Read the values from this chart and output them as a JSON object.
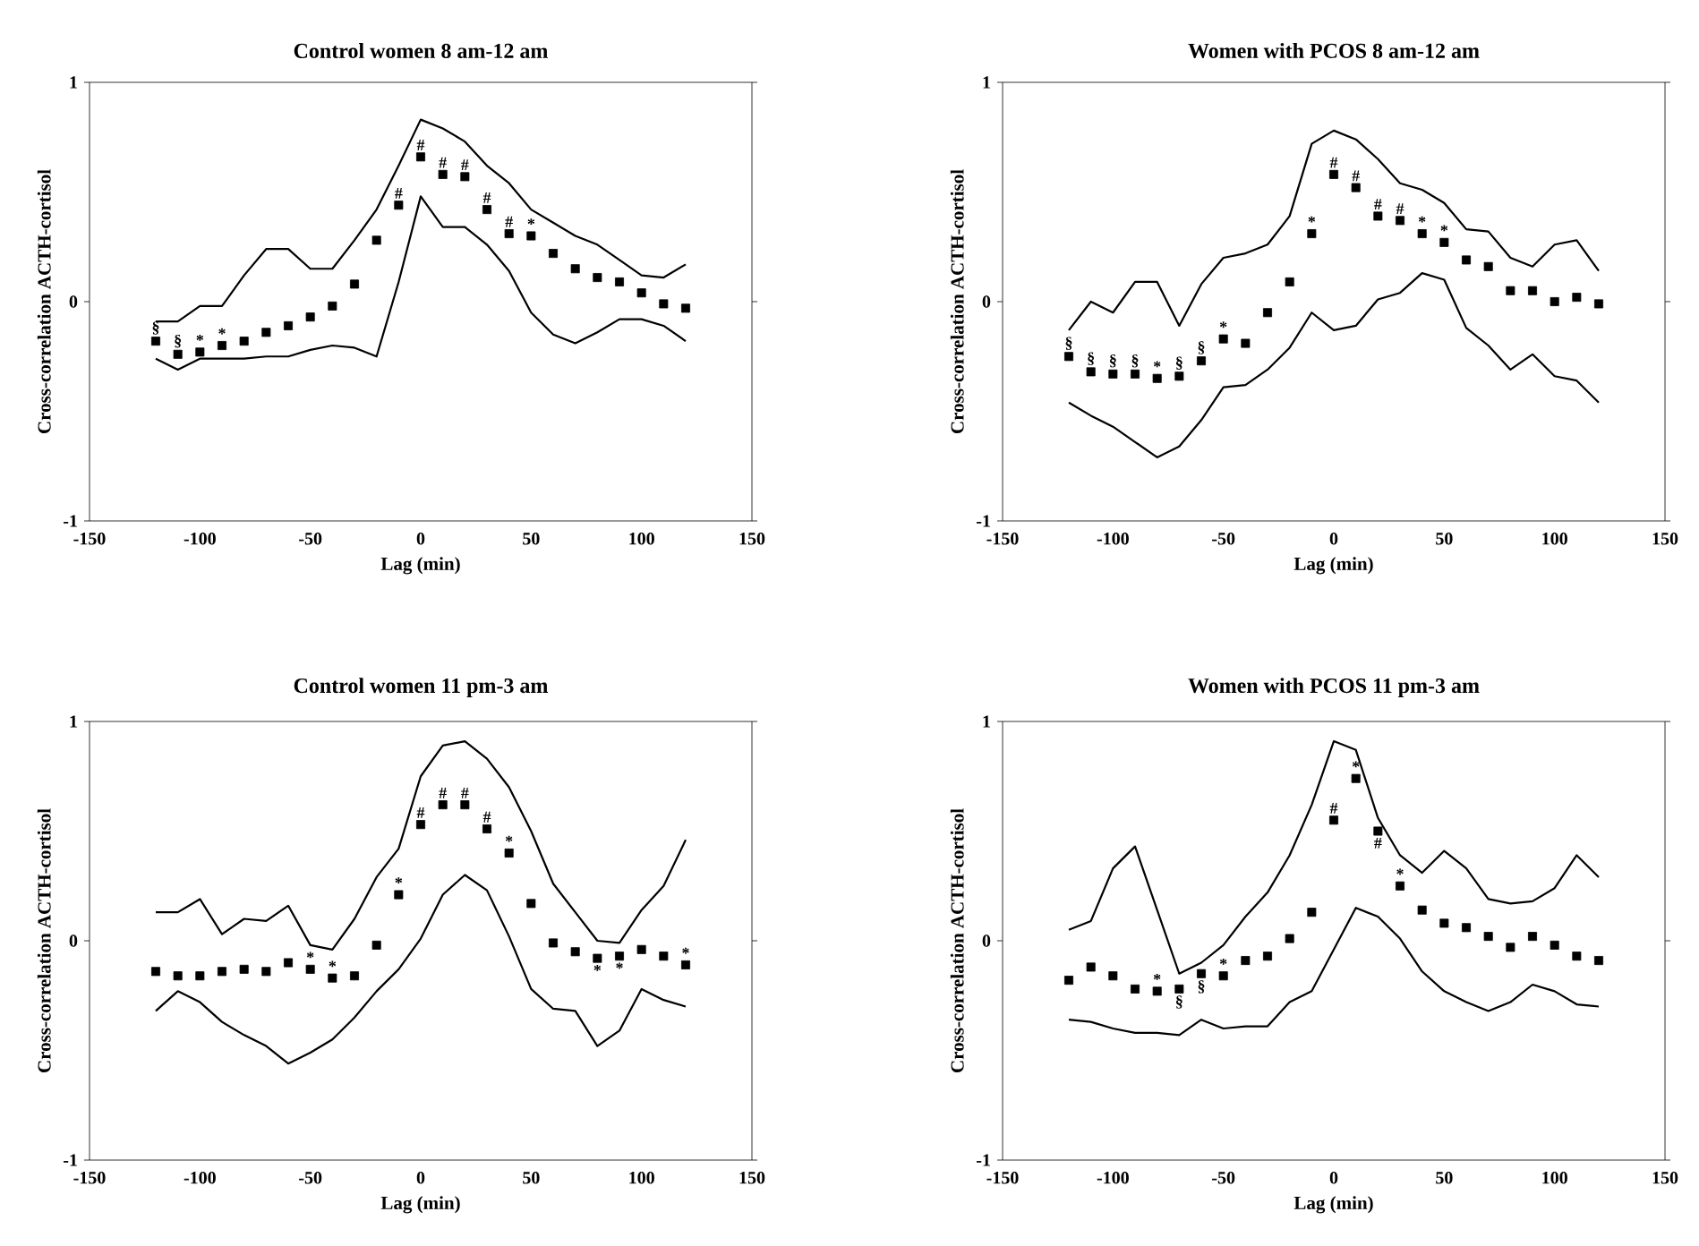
{
  "chart_data": [
    {
      "type": "scatter",
      "title": "Control women 8 am-12 am",
      "xlabel": "Lag (min)",
      "ylabel": "Cross-correlation ACTH-cortisol",
      "xlim": [
        -150,
        150
      ],
      "xticks": [
        -150,
        -100,
        -50,
        0,
        50,
        100,
        150
      ],
      "ylim": [
        -1,
        1
      ],
      "yticks": [
        -1,
        0,
        1
      ],
      "marker": "square",
      "x": [
        -120,
        -110,
        -100,
        -90,
        -80,
        -70,
        -60,
        -50,
        -40,
        -30,
        -20,
        -10,
        0,
        10,
        20,
        30,
        40,
        50,
        60,
        70,
        80,
        90,
        100,
        110,
        120
      ],
      "series": [
        {
          "color": "#000000",
          "values": [
            -0.18,
            -0.24,
            -0.23,
            -0.2,
            -0.18,
            -0.14,
            -0.11,
            -0.07,
            -0.02,
            0.08,
            0.28,
            0.44,
            0.66,
            0.58,
            0.57,
            0.42,
            0.31,
            0.3,
            0.22,
            0.15,
            0.11,
            0.09,
            0.04,
            -0.01,
            -0.03
          ]
        },
        {
          "type": "line",
          "marker": "none",
          "line_style": "solid",
          "color": "#000000",
          "values": [
            -0.09,
            -0.09,
            -0.02,
            -0.02,
            0.12,
            0.24,
            0.24,
            0.15,
            0.15,
            0.28,
            0.42,
            0.62,
            0.83,
            0.79,
            0.73,
            0.62,
            0.54,
            0.42,
            0.36,
            0.3,
            0.26,
            0.19,
            0.12,
            0.11,
            0.17
          ]
        },
        {
          "type": "line",
          "marker": "none",
          "line_style": "solid",
          "color": "#000000",
          "values": [
            -0.26,
            -0.31,
            -0.26,
            -0.26,
            -0.26,
            -0.25,
            -0.25,
            -0.22,
            -0.2,
            -0.21,
            -0.25,
            0.09,
            0.48,
            0.34,
            0.34,
            0.26,
            0.14,
            -0.05,
            -0.15,
            -0.19,
            -0.14,
            -0.08,
            -0.08,
            -0.11,
            -0.18
          ]
        }
      ],
      "annotations": [
        {
          "text": "§",
          "x": -120,
          "y": -0.18
        },
        {
          "text": "§",
          "x": -110,
          "y": -0.24
        },
        {
          "text": "*",
          "x": -100,
          "y": -0.23
        },
        {
          "text": "*",
          "x": -90,
          "y": -0.2
        },
        {
          "text": "#",
          "x": -10,
          "y": 0.44
        },
        {
          "text": "#",
          "x": 0,
          "y": 0.66
        },
        {
          "text": "#",
          "x": 10,
          "y": 0.58
        },
        {
          "text": "#",
          "x": 20,
          "y": 0.57
        },
        {
          "text": "#",
          "x": 30,
          "y": 0.42
        },
        {
          "text": "#",
          "x": 40,
          "y": 0.31
        },
        {
          "text": "*",
          "x": 50,
          "y": 0.3
        }
      ]
    },
    {
      "type": "scatter",
      "title": "Women with PCOS 8 am-12 am",
      "xlabel": "Lag (min)",
      "ylabel": "Cross-correlation ACTH-cortisol",
      "xlim": [
        -150,
        150
      ],
      "xticks": [
        -150,
        -100,
        -50,
        0,
        50,
        100,
        150
      ],
      "ylim": [
        -1,
        1
      ],
      "yticks": [
        -1,
        0,
        1
      ],
      "marker": "square",
      "x": [
        -120,
        -110,
        -100,
        -90,
        -80,
        -70,
        -60,
        -50,
        -40,
        -30,
        -20,
        -10,
        0,
        10,
        20,
        30,
        40,
        50,
        60,
        70,
        80,
        90,
        100,
        110,
        120
      ],
      "series": [
        {
          "color": "#000000",
          "values": [
            -0.25,
            -0.32,
            -0.33,
            -0.33,
            -0.35,
            -0.34,
            -0.27,
            -0.17,
            -0.19,
            -0.05,
            0.09,
            0.31,
            0.58,
            0.52,
            0.39,
            0.37,
            0.31,
            0.27,
            0.19,
            0.16,
            0.05,
            0.05,
            0.0,
            0.02,
            -0.01
          ]
        },
        {
          "type": "line",
          "marker": "none",
          "line_style": "solid",
          "color": "#000000",
          "values": [
            -0.13,
            0.0,
            -0.05,
            0.09,
            0.09,
            -0.11,
            0.08,
            0.2,
            0.22,
            0.26,
            0.39,
            0.72,
            0.78,
            0.74,
            0.65,
            0.54,
            0.51,
            0.45,
            0.33,
            0.32,
            0.2,
            0.16,
            0.26,
            0.28,
            0.14
          ]
        },
        {
          "type": "line",
          "marker": "none",
          "line_style": "solid",
          "color": "#000000",
          "values": [
            -0.46,
            -0.52,
            -0.57,
            -0.64,
            -0.71,
            -0.66,
            -0.54,
            -0.39,
            -0.38,
            -0.31,
            -0.21,
            -0.05,
            -0.13,
            -0.11,
            0.01,
            0.04,
            0.13,
            0.1,
            -0.12,
            -0.2,
            -0.31,
            -0.24,
            -0.34,
            -0.36,
            -0.46
          ]
        }
      ],
      "annotations": [
        {
          "text": "§",
          "x": -120,
          "y": -0.25
        },
        {
          "text": "§",
          "x": -110,
          "y": -0.32
        },
        {
          "text": "§",
          "x": -100,
          "y": -0.33
        },
        {
          "text": "§",
          "x": -90,
          "y": -0.33
        },
        {
          "text": "*",
          "x": -80,
          "y": -0.35
        },
        {
          "text": "§",
          "x": -70,
          "y": -0.34
        },
        {
          "text": "§",
          "x": -60,
          "y": -0.27
        },
        {
          "text": "*",
          "x": -50,
          "y": -0.17
        },
        {
          "text": "*",
          "x": -10,
          "y": 0.31
        },
        {
          "text": "#",
          "x": 0,
          "y": 0.58
        },
        {
          "text": "#",
          "x": 10,
          "y": 0.52
        },
        {
          "text": "#",
          "x": 20,
          "y": 0.39
        },
        {
          "text": "#",
          "x": 30,
          "y": 0.37
        },
        {
          "text": "*",
          "x": 40,
          "y": 0.31
        },
        {
          "text": "*",
          "x": 50,
          "y": 0.27
        }
      ]
    },
    {
      "type": "scatter",
      "title": "Control women 11 pm-3 am",
      "xlabel": "Lag (min)",
      "ylabel": "Cross-correlation ACTH-cortisol",
      "xlim": [
        -150,
        150
      ],
      "xticks": [
        -150,
        -100,
        -50,
        0,
        50,
        100,
        150
      ],
      "ylim": [
        -1,
        1
      ],
      "yticks": [
        -1,
        0,
        1
      ],
      "marker": "square",
      "x": [
        -120,
        -110,
        -100,
        -90,
        -80,
        -70,
        -60,
        -50,
        -40,
        -30,
        -20,
        -10,
        0,
        10,
        20,
        30,
        40,
        50,
        60,
        70,
        80,
        90,
        100,
        110,
        120
      ],
      "series": [
        {
          "color": "#000000",
          "values": [
            -0.14,
            -0.16,
            -0.16,
            -0.14,
            -0.13,
            -0.14,
            -0.1,
            -0.13,
            -0.17,
            -0.16,
            -0.02,
            0.21,
            0.53,
            0.62,
            0.62,
            0.51,
            0.4,
            0.17,
            -0.01,
            -0.05,
            -0.08,
            -0.07,
            -0.04,
            -0.07,
            -0.11
          ]
        },
        {
          "type": "line",
          "marker": "none",
          "line_style": "solid",
          "color": "#000000",
          "values": [
            0.13,
            0.13,
            0.19,
            0.03,
            0.1,
            0.09,
            0.16,
            -0.02,
            -0.04,
            0.1,
            0.29,
            0.42,
            0.75,
            0.89,
            0.91,
            0.83,
            0.7,
            0.5,
            0.26,
            0.13,
            0.0,
            -0.01,
            0.14,
            0.25,
            0.46
          ]
        },
        {
          "type": "line",
          "marker": "none",
          "line_style": "solid",
          "color": "#000000",
          "values": [
            -0.32,
            -0.23,
            -0.28,
            -0.37,
            -0.43,
            -0.48,
            -0.56,
            -0.51,
            -0.45,
            -0.35,
            -0.23,
            -0.13,
            0.01,
            0.21,
            0.3,
            0.23,
            0.02,
            -0.22,
            -0.31,
            -0.32,
            -0.48,
            -0.41,
            -0.22,
            -0.27,
            -0.3
          ]
        }
      ],
      "annotations": [
        {
          "text": "*",
          "x": -50,
          "y": -0.13
        },
        {
          "text": "*",
          "x": -40,
          "y": -0.17
        },
        {
          "text": "*",
          "x": -10,
          "y": 0.21
        },
        {
          "text": "#",
          "x": 0,
          "y": 0.53
        },
        {
          "text": "#",
          "x": 10,
          "y": 0.62
        },
        {
          "text": "#",
          "x": 20,
          "y": 0.62
        },
        {
          "text": "#",
          "x": 30,
          "y": 0.51
        },
        {
          "text": "*",
          "x": 40,
          "y": 0.4
        },
        {
          "text": "*",
          "x": 80,
          "y": -0.08
        },
        {
          "text": "*",
          "x": 90,
          "y": -0.07
        },
        {
          "text": "*",
          "x": 120,
          "y": -0.11
        }
      ]
    },
    {
      "type": "scatter",
      "title": "Women with PCOS 11 pm-3 am",
      "xlabel": "Lag (min)",
      "ylabel": "Cross-correlation ACTH-cortisol",
      "xlim": [
        -150,
        150
      ],
      "xticks": [
        -150,
        -100,
        -50,
        0,
        50,
        100,
        150
      ],
      "ylim": [
        -1,
        1
      ],
      "yticks": [
        -1,
        0,
        1
      ],
      "marker": "square",
      "x": [
        -120,
        -110,
        -100,
        -90,
        -80,
        -70,
        -60,
        -50,
        -40,
        -30,
        -20,
        -10,
        0,
        10,
        20,
        30,
        40,
        50,
        60,
        70,
        80,
        90,
        100,
        110,
        120
      ],
      "series": [
        {
          "color": "#000000",
          "values": [
            -0.18,
            -0.12,
            -0.16,
            -0.22,
            -0.23,
            -0.22,
            -0.15,
            -0.16,
            -0.09,
            -0.07,
            0.01,
            0.13,
            0.55,
            0.74,
            0.5,
            0.25,
            0.14,
            0.08,
            0.06,
            0.02,
            -0.03,
            0.02,
            -0.02,
            -0.07,
            -0.09
          ]
        },
        {
          "type": "line",
          "marker": "none",
          "line_style": "solid",
          "color": "#000000",
          "values": [
            0.05,
            0.09,
            0.33,
            0.43,
            0.14,
            -0.15,
            -0.1,
            -0.02,
            0.11,
            0.22,
            0.39,
            0.62,
            0.91,
            0.87,
            0.56,
            0.39,
            0.31,
            0.41,
            0.33,
            0.19,
            0.17,
            0.18,
            0.24,
            0.39,
            0.29
          ]
        },
        {
          "type": "line",
          "marker": "none",
          "line_style": "solid",
          "color": "#000000",
          "values": [
            -0.36,
            -0.37,
            -0.4,
            -0.42,
            -0.42,
            -0.43,
            -0.36,
            -0.4,
            -0.39,
            -0.39,
            -0.28,
            -0.23,
            -0.04,
            0.15,
            0.11,
            0.01,
            -0.14,
            -0.23,
            -0.28,
            -0.32,
            -0.28,
            -0.2,
            -0.23,
            -0.29,
            -0.3
          ]
        }
      ],
      "annotations": [
        {
          "text": "*",
          "x": -80,
          "y": -0.23
        },
        {
          "text": "§",
          "x": -70,
          "y": -0.22
        },
        {
          "text": "§",
          "x": -60,
          "y": -0.15
        },
        {
          "text": "*",
          "x": -50,
          "y": -0.16
        },
        {
          "text": "#",
          "x": 0,
          "y": 0.55
        },
        {
          "text": "*",
          "x": 10,
          "y": 0.74
        },
        {
          "text": "#",
          "x": 20,
          "y": 0.5
        },
        {
          "text": "*",
          "x": 30,
          "y": 0.25
        }
      ]
    }
  ]
}
